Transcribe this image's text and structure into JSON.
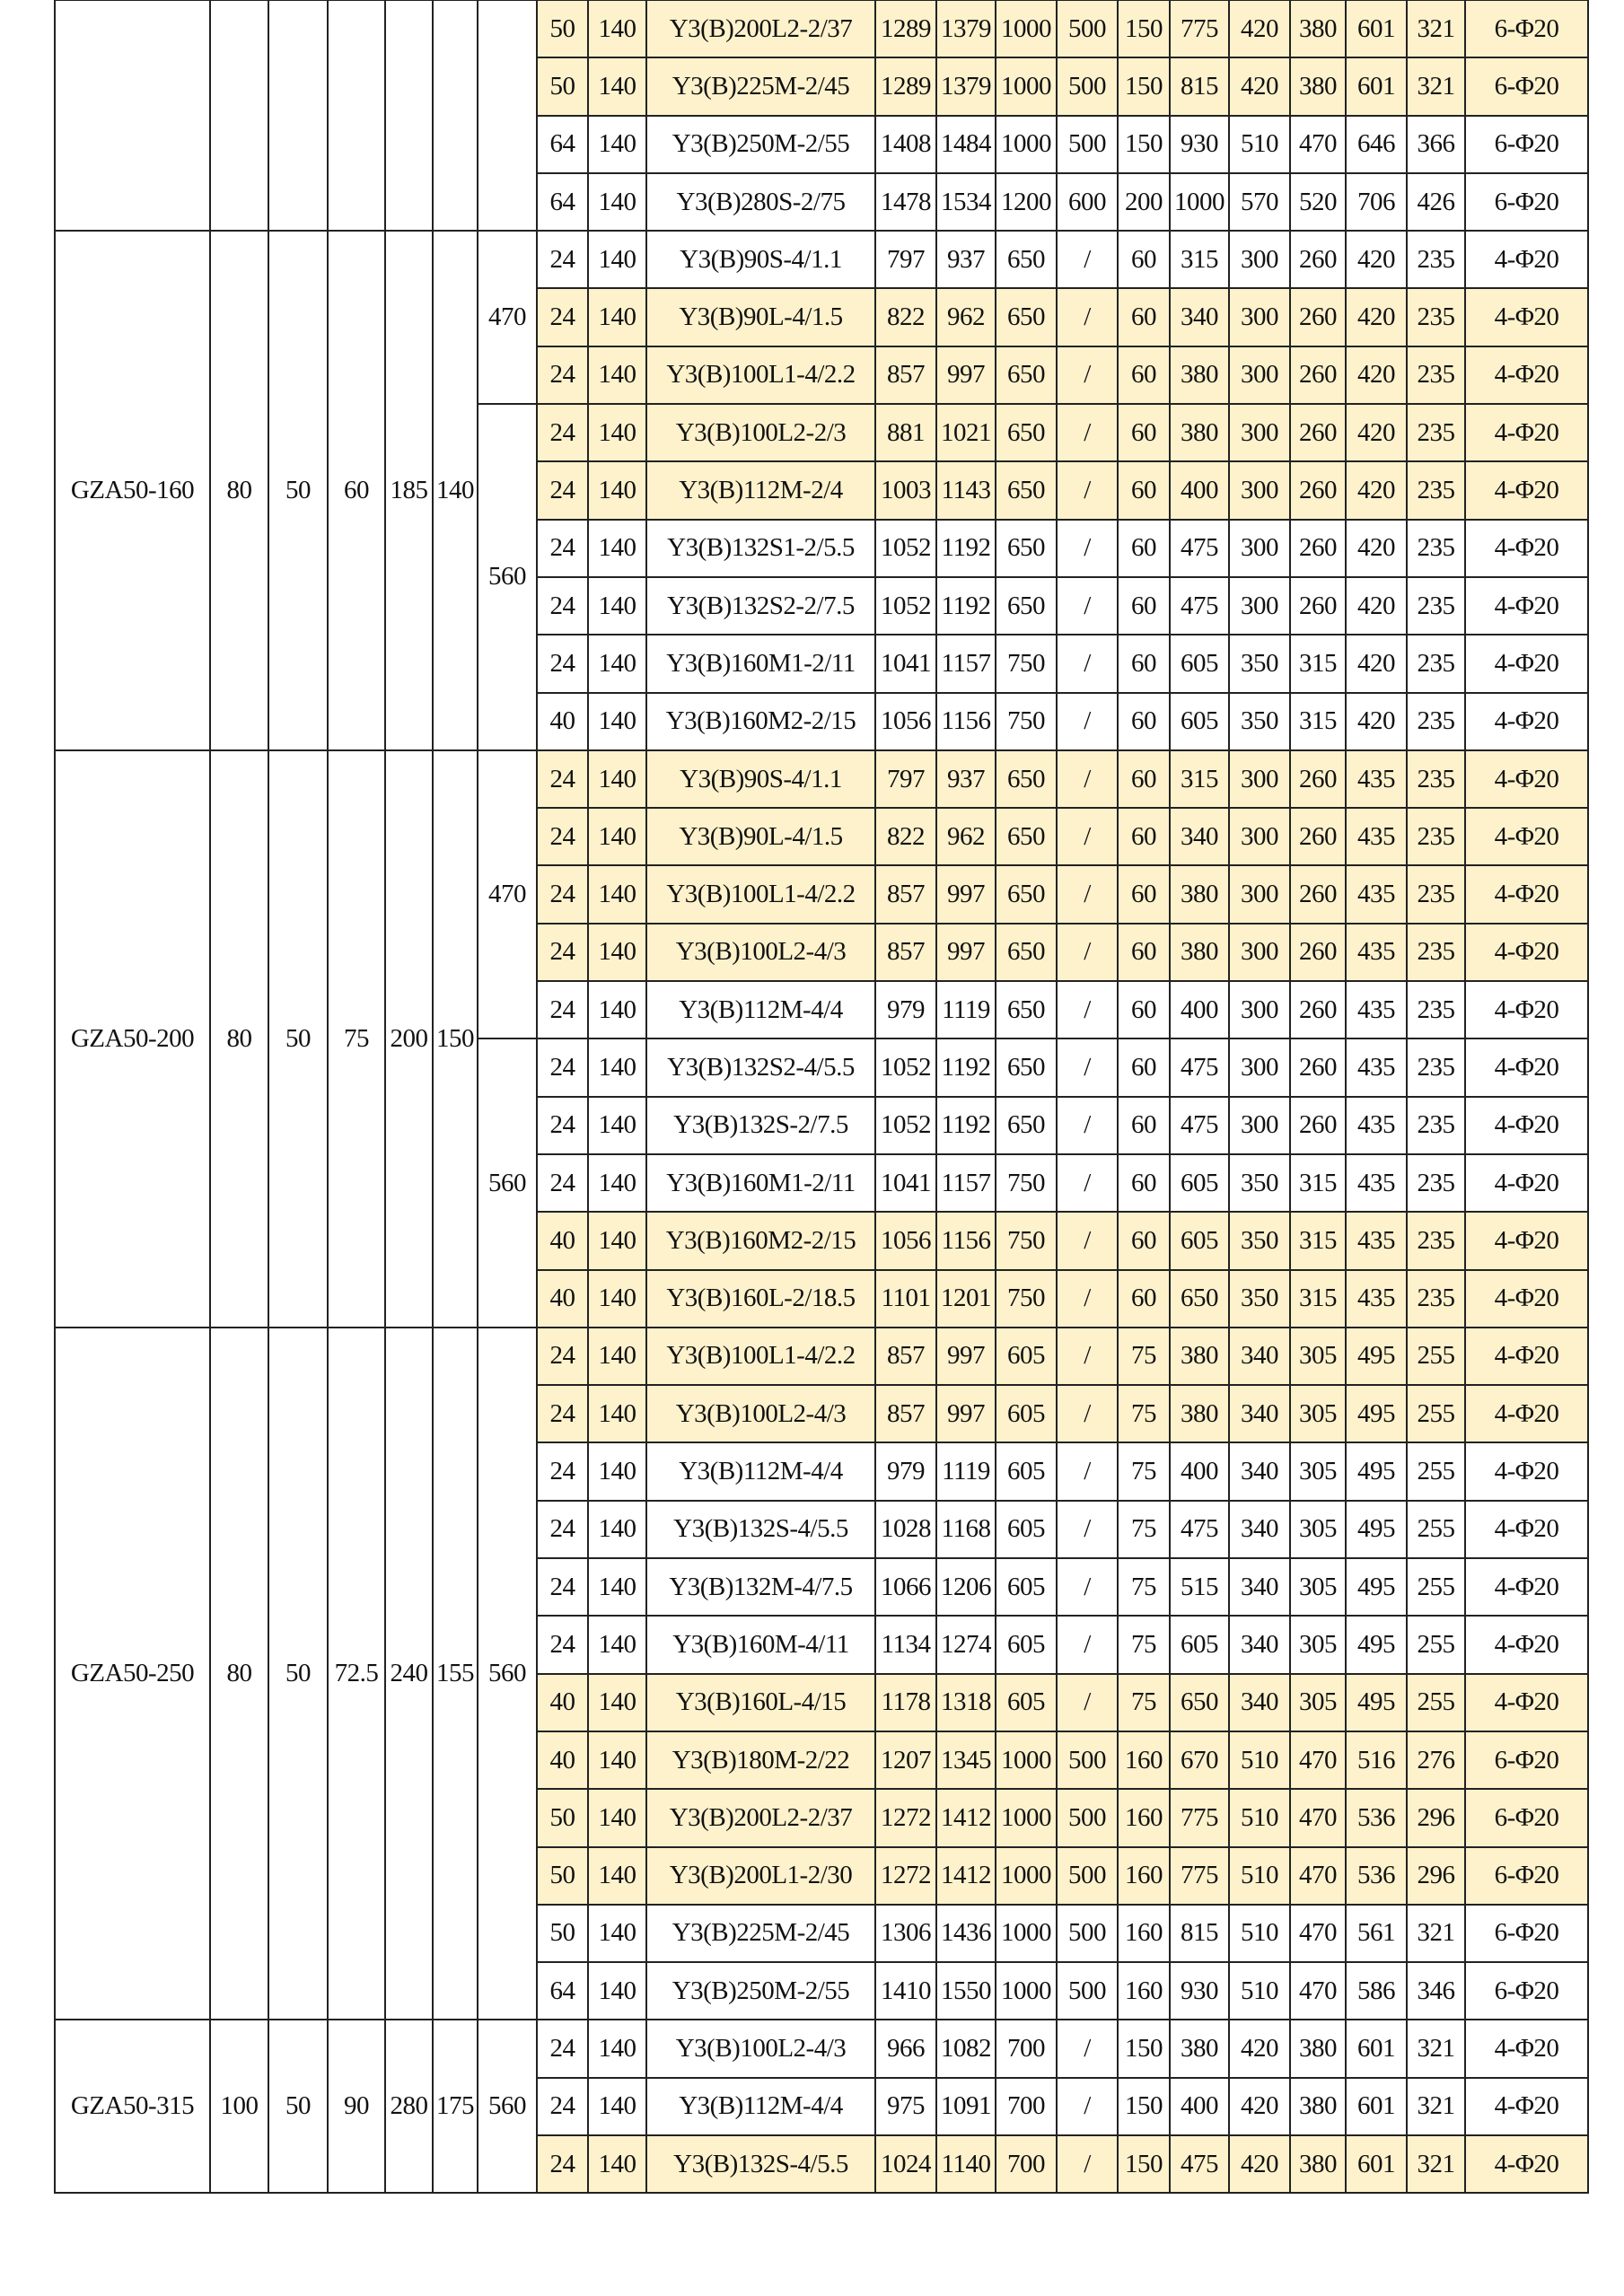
{
  "colors": {
    "highlight": "#FDF2CC",
    "border": "#222222"
  },
  "groups": [
    {
      "model": "",
      "params": [
        "",
        "",
        "",
        "",
        ""
      ],
      "ends": [
        {
          "value": "",
          "rows": 4
        }
      ],
      "rows": [
        {
          "hl": true,
          "cells": [
            "50",
            "140",
            "Y3(B)200L2-2/37",
            "1289",
            "1379",
            "1000",
            "500",
            "150",
            "775",
            "420",
            "380",
            "601",
            "321",
            "6-Φ20"
          ]
        },
        {
          "hl": true,
          "cells": [
            "50",
            "140",
            "Y3(B)225M-2/45",
            "1289",
            "1379",
            "1000",
            "500",
            "150",
            "815",
            "420",
            "380",
            "601",
            "321",
            "6-Φ20"
          ]
        },
        {
          "hl": false,
          "cells": [
            "64",
            "140",
            "Y3(B)250M-2/55",
            "1408",
            "1484",
            "1000",
            "500",
            "150",
            "930",
            "510",
            "470",
            "646",
            "366",
            "6-Φ20"
          ]
        },
        {
          "hl": false,
          "cells": [
            "64",
            "140",
            "Y3(B)280S-2/75",
            "1478",
            "1534",
            "1200",
            "600",
            "200",
            "1000",
            "570",
            "520",
            "706",
            "426",
            "6-Φ20"
          ]
        }
      ]
    },
    {
      "model": "GZA50-160",
      "params": [
        "80",
        "50",
        "60",
        "185",
        "140"
      ],
      "ends": [
        {
          "value": "470",
          "rows": 3
        },
        {
          "value": "560",
          "rows": 6
        }
      ],
      "rows": [
        {
          "hl": false,
          "cells": [
            "24",
            "140",
            "Y3(B)90S-4/1.1",
            "797",
            "937",
            "650",
            "/",
            "60",
            "315",
            "300",
            "260",
            "420",
            "235",
            "4-Φ20"
          ]
        },
        {
          "hl": true,
          "cells": [
            "24",
            "140",
            "Y3(B)90L-4/1.5",
            "822",
            "962",
            "650",
            "/",
            "60",
            "340",
            "300",
            "260",
            "420",
            "235",
            "4-Φ20"
          ]
        },
        {
          "hl": true,
          "cells": [
            "24",
            "140",
            "Y3(B)100L1-4/2.2",
            "857",
            "997",
            "650",
            "/",
            "60",
            "380",
            "300",
            "260",
            "420",
            "235",
            "4-Φ20"
          ]
        },
        {
          "hl": true,
          "cells": [
            "24",
            "140",
            "Y3(B)100L2-2/3",
            "881",
            "1021",
            "650",
            "/",
            "60",
            "380",
            "300",
            "260",
            "420",
            "235",
            "4-Φ20"
          ]
        },
        {
          "hl": true,
          "cells": [
            "24",
            "140",
            "Y3(B)112M-2/4",
            "1003",
            "1143",
            "650",
            "/",
            "60",
            "400",
            "300",
            "260",
            "420",
            "235",
            "4-Φ20"
          ]
        },
        {
          "hl": false,
          "cells": [
            "24",
            "140",
            "Y3(B)132S1-2/5.5",
            "1052",
            "1192",
            "650",
            "/",
            "60",
            "475",
            "300",
            "260",
            "420",
            "235",
            "4-Φ20"
          ]
        },
        {
          "hl": false,
          "cells": [
            "24",
            "140",
            "Y3(B)132S2-2/7.5",
            "1052",
            "1192",
            "650",
            "/",
            "60",
            "475",
            "300",
            "260",
            "420",
            "235",
            "4-Φ20"
          ]
        },
        {
          "hl": false,
          "cells": [
            "24",
            "140",
            "Y3(B)160M1-2/11",
            "1041",
            "1157",
            "750",
            "/",
            "60",
            "605",
            "350",
            "315",
            "420",
            "235",
            "4-Φ20"
          ]
        },
        {
          "hl": false,
          "cells": [
            "40",
            "140",
            "Y3(B)160M2-2/15",
            "1056",
            "1156",
            "750",
            "/",
            "60",
            "605",
            "350",
            "315",
            "420",
            "235",
            "4-Φ20"
          ]
        }
      ]
    },
    {
      "model": "GZA50-200",
      "params": [
        "80",
        "50",
        "75",
        "200",
        "150"
      ],
      "ends": [
        {
          "value": "470",
          "rows": 5
        },
        {
          "value": "560",
          "rows": 5
        }
      ],
      "rows": [
        {
          "hl": true,
          "cells": [
            "24",
            "140",
            "Y3(B)90S-4/1.1",
            "797",
            "937",
            "650",
            "/",
            "60",
            "315",
            "300",
            "260",
            "435",
            "235",
            "4-Φ20"
          ]
        },
        {
          "hl": true,
          "cells": [
            "24",
            "140",
            "Y3(B)90L-4/1.5",
            "822",
            "962",
            "650",
            "/",
            "60",
            "340",
            "300",
            "260",
            "435",
            "235",
            "4-Φ20"
          ]
        },
        {
          "hl": true,
          "cells": [
            "24",
            "140",
            "Y3(B)100L1-4/2.2",
            "857",
            "997",
            "650",
            "/",
            "60",
            "380",
            "300",
            "260",
            "435",
            "235",
            "4-Φ20"
          ]
        },
        {
          "hl": true,
          "cells": [
            "24",
            "140",
            "Y3(B)100L2-4/3",
            "857",
            "997",
            "650",
            "/",
            "60",
            "380",
            "300",
            "260",
            "435",
            "235",
            "4-Φ20"
          ]
        },
        {
          "hl": false,
          "cells": [
            "24",
            "140",
            "Y3(B)112M-4/4",
            "979",
            "1119",
            "650",
            "/",
            "60",
            "400",
            "300",
            "260",
            "435",
            "235",
            "4-Φ20"
          ]
        },
        {
          "hl": false,
          "cells": [
            "24",
            "140",
            "Y3(B)132S2-4/5.5",
            "1052",
            "1192",
            "650",
            "/",
            "60",
            "475",
            "300",
            "260",
            "435",
            "235",
            "4-Φ20"
          ]
        },
        {
          "hl": false,
          "cells": [
            "24",
            "140",
            "Y3(B)132S-2/7.5",
            "1052",
            "1192",
            "650",
            "/",
            "60",
            "475",
            "300",
            "260",
            "435",
            "235",
            "4-Φ20"
          ]
        },
        {
          "hl": false,
          "cells": [
            "24",
            "140",
            "Y3(B)160M1-2/11",
            "1041",
            "1157",
            "750",
            "/",
            "60",
            "605",
            "350",
            "315",
            "435",
            "235",
            "4-Φ20"
          ]
        },
        {
          "hl": true,
          "cells": [
            "40",
            "140",
            "Y3(B)160M2-2/15",
            "1056",
            "1156",
            "750",
            "/",
            "60",
            "605",
            "350",
            "315",
            "435",
            "235",
            "4-Φ20"
          ]
        },
        {
          "hl": true,
          "cells": [
            "40",
            "140",
            "Y3(B)160L-2/18.5",
            "1101",
            "1201",
            "750",
            "/",
            "60",
            "650",
            "350",
            "315",
            "435",
            "235",
            "4-Φ20"
          ]
        }
      ]
    },
    {
      "model": "GZA50-250",
      "params": [
        "80",
        "50",
        "72.5",
        "240",
        "155"
      ],
      "ends": [
        {
          "value": "560",
          "rows": 12
        }
      ],
      "rows": [
        {
          "hl": true,
          "cells": [
            "24",
            "140",
            "Y3(B)100L1-4/2.2",
            "857",
            "997",
            "605",
            "/",
            "75",
            "380",
            "340",
            "305",
            "495",
            "255",
            "4-Φ20"
          ]
        },
        {
          "hl": true,
          "cells": [
            "24",
            "140",
            "Y3(B)100L2-4/3",
            "857",
            "997",
            "605",
            "/",
            "75",
            "380",
            "340",
            "305",
            "495",
            "255",
            "4-Φ20"
          ]
        },
        {
          "hl": false,
          "cells": [
            "24",
            "140",
            "Y3(B)112M-4/4",
            "979",
            "1119",
            "605",
            "/",
            "75",
            "400",
            "340",
            "305",
            "495",
            "255",
            "4-Φ20"
          ]
        },
        {
          "hl": false,
          "cells": [
            "24",
            "140",
            "Y3(B)132S-4/5.5",
            "1028",
            "1168",
            "605",
            "/",
            "75",
            "475",
            "340",
            "305",
            "495",
            "255",
            "4-Φ20"
          ]
        },
        {
          "hl": false,
          "cells": [
            "24",
            "140",
            "Y3(B)132M-4/7.5",
            "1066",
            "1206",
            "605",
            "/",
            "75",
            "515",
            "340",
            "305",
            "495",
            "255",
            "4-Φ20"
          ]
        },
        {
          "hl": false,
          "cells": [
            "24",
            "140",
            "Y3(B)160M-4/11",
            "1134",
            "1274",
            "605",
            "/",
            "75",
            "605",
            "340",
            "305",
            "495",
            "255",
            "4-Φ20"
          ]
        },
        {
          "hl": true,
          "cells": [
            "40",
            "140",
            "Y3(B)160L-4/15",
            "1178",
            "1318",
            "605",
            "/",
            "75",
            "650",
            "340",
            "305",
            "495",
            "255",
            "4-Φ20"
          ]
        },
        {
          "hl": true,
          "cells": [
            "40",
            "140",
            "Y3(B)180M-2/22",
            "1207",
            "1345",
            "1000",
            "500",
            "160",
            "670",
            "510",
            "470",
            "516",
            "276",
            "6-Φ20"
          ]
        },
        {
          "hl": true,
          "cells": [
            "50",
            "140",
            "Y3(B)200L2-2/37",
            "1272",
            "1412",
            "1000",
            "500",
            "160",
            "775",
            "510",
            "470",
            "536",
            "296",
            "6-Φ20"
          ]
        },
        {
          "hl": true,
          "cells": [
            "50",
            "140",
            "Y3(B)200L1-2/30",
            "1272",
            "1412",
            "1000",
            "500",
            "160",
            "775",
            "510",
            "470",
            "536",
            "296",
            "6-Φ20"
          ]
        },
        {
          "hl": false,
          "cells": [
            "50",
            "140",
            "Y3(B)225M-2/45",
            "1306",
            "1436",
            "1000",
            "500",
            "160",
            "815",
            "510",
            "470",
            "561",
            "321",
            "6-Φ20"
          ]
        },
        {
          "hl": false,
          "cells": [
            "64",
            "140",
            "Y3(B)250M-2/55",
            "1410",
            "1550",
            "1000",
            "500",
            "160",
            "930",
            "510",
            "470",
            "586",
            "346",
            "6-Φ20"
          ]
        }
      ]
    },
    {
      "model": "GZA50-315",
      "params": [
        "100",
        "50",
        "90",
        "280",
        "175"
      ],
      "ends": [
        {
          "value": "560",
          "rows": 3
        }
      ],
      "rows": [
        {
          "hl": false,
          "cells": [
            "24",
            "140",
            "Y3(B)100L2-4/3",
            "966",
            "1082",
            "700",
            "/",
            "150",
            "380",
            "420",
            "380",
            "601",
            "321",
            "4-Φ20"
          ]
        },
        {
          "hl": false,
          "cells": [
            "24",
            "140",
            "Y3(B)112M-4/4",
            "975",
            "1091",
            "700",
            "/",
            "150",
            "400",
            "420",
            "380",
            "601",
            "321",
            "4-Φ20"
          ]
        },
        {
          "hl": true,
          "cells": [
            "24",
            "140",
            "Y3(B)132S-4/5.5",
            "1024",
            "1140",
            "700",
            "/",
            "150",
            "475",
            "420",
            "380",
            "601",
            "321",
            "4-Φ20"
          ]
        }
      ]
    }
  ]
}
